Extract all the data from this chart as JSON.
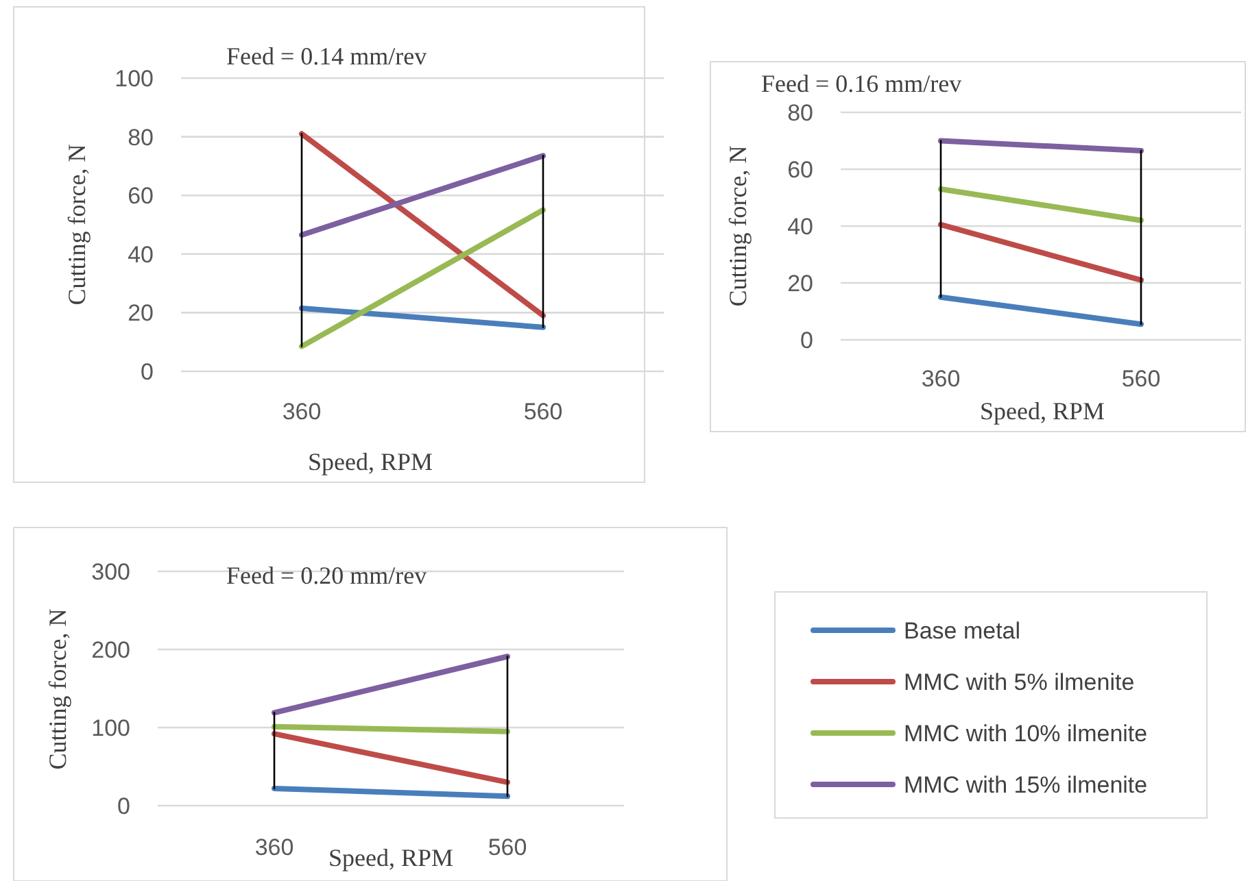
{
  "chart_data": [
    {
      "type": "line",
      "title": "Feed = 0.14 mm/rev",
      "xlabel": "Speed, RPM",
      "ylabel": "Cutting force, N",
      "categories": [
        "360",
        "560"
      ],
      "ylim": [
        0,
        100
      ],
      "yticks": [
        0,
        20,
        40,
        60,
        80,
        100
      ],
      "grid": "y",
      "series": [
        {
          "color": "#4a7ebb",
          "values": [
            21.5,
            15
          ]
        },
        {
          "color": "#be4b48",
          "values": [
            81,
            19
          ]
        },
        {
          "color": "#98b954",
          "values": [
            8.5,
            55
          ]
        },
        {
          "color": "#7d60a0",
          "values": [
            46.5,
            73.5
          ]
        },
        {
          "type": "line",
          "color": "#000000",
          "x": [
            "360",
            "360"
          ],
          "values": [
            81,
            8.5
          ]
        },
        {
          "type": "line",
          "color": "#000000",
          "x": [
            "560",
            "560"
          ],
          "values": [
            73.5,
            15
          ]
        }
      ]
    },
    {
      "type": "line",
      "title": "Feed = 0.16 mm/rev",
      "xlabel": "Speed, RPM",
      "ylabel": "Cutting force, N",
      "categories": [
        "360",
        "560"
      ],
      "ylim": [
        0,
        80
      ],
      "yticks": [
        0,
        20,
        40,
        60,
        80
      ],
      "grid": "y",
      "series": [
        {
          "color": "#4a7ebb",
          "values": [
            15,
            5.5
          ]
        },
        {
          "color": "#be4b48",
          "values": [
            40.5,
            21
          ]
        },
        {
          "color": "#98b954",
          "values": [
            53,
            42
          ]
        },
        {
          "color": "#7d60a0",
          "values": [
            70,
            66.5
          ]
        },
        {
          "type": "line",
          "color": "#000000",
          "x": [
            "360",
            "360"
          ],
          "values": [
            70,
            15
          ]
        },
        {
          "type": "line",
          "color": "#000000",
          "x": [
            "560",
            "560"
          ],
          "values": [
            66.5,
            5.5
          ]
        }
      ]
    },
    {
      "type": "line",
      "title": "Feed = 0.20 mm/rev",
      "xlabel": "Speed, RPM",
      "ylabel": "Cutting force, N",
      "categories": [
        "360",
        "560"
      ],
      "ylim": [
        0,
        300
      ],
      "yticks": [
        0,
        100,
        200,
        300
      ],
      "grid": "y",
      "legend": "right",
      "series": [
        {
          "name": "Base metal",
          "color": "#4a7ebb",
          "values": [
            22,
            12
          ]
        },
        {
          "name": "MMC with 5% ilmenite",
          "color": "#be4b48",
          "values": [
            92,
            30
          ]
        },
        {
          "name": "MMC with 10% ilmenite",
          "color": "#98b954",
          "values": [
            101,
            95
          ]
        },
        {
          "name": "MMC with 15% ilmenite",
          "color": "#7d60a0",
          "values": [
            119,
            191
          ]
        },
        {
          "type": "line",
          "color": "#000000",
          "x": [
            "360",
            "360"
          ],
          "values": [
            119,
            22
          ]
        },
        {
          "type": "line",
          "color": "#000000",
          "x": [
            "560",
            "560"
          ],
          "values": [
            191,
            12
          ]
        }
      ]
    }
  ]
}
